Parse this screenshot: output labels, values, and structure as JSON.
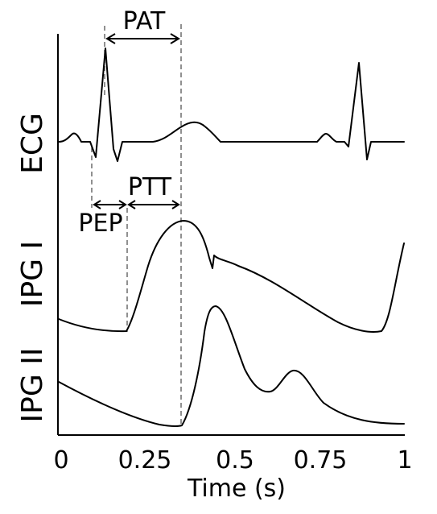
{
  "chart_data": {
    "type": "line",
    "xlabel": "Time (s)",
    "xlim": [
      0,
      1
    ],
    "x_ticks": [
      "0",
      "0.25",
      "0.5",
      "0.75",
      "1"
    ],
    "series": [
      {
        "name": "ECG"
      },
      {
        "name": "IPG I"
      },
      {
        "name": "IPG II"
      }
    ],
    "annotations": [
      {
        "label": "PAT",
        "from": 0.14,
        "to": 0.35
      },
      {
        "label": "PEP",
        "from": 0.1,
        "to": 0.2
      },
      {
        "label": "PTT",
        "from": 0.2,
        "to": 0.35
      }
    ]
  }
}
